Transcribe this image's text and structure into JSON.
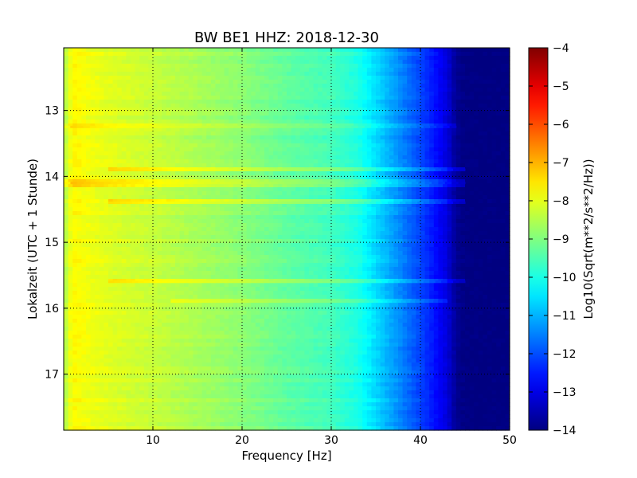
{
  "chart_data": {
    "type": "heatmap",
    "title": "BW BE1 HHZ: 2018-12-30",
    "xlabel": "Frequency [Hz]",
    "ylabel": "Lokalzeit (UTC + 1 Stunde)",
    "xlim": [
      0,
      50
    ],
    "ylim": [
      12.05,
      17.85
    ],
    "y_inverted": true,
    "x_ticks": [
      10,
      20,
      30,
      40,
      50
    ],
    "y_ticks": [
      13,
      14,
      15,
      16,
      17
    ],
    "grid": true,
    "colormap": "jet",
    "colorbar": {
      "label": "Log10(Sqrt(m**2/s**2/Hz))",
      "min": -14,
      "max": -4,
      "ticks": [
        -4,
        -5,
        -6,
        -7,
        -8,
        -9,
        -10,
        -11,
        -12,
        -13,
        -14
      ]
    },
    "spectrum_profile": {
      "frequency_hz": [
        0,
        1,
        3,
        6,
        10,
        15,
        20,
        25,
        30,
        33,
        35,
        37,
        39,
        41,
        43,
        44,
        45,
        50
      ],
      "log10_amplitude": [
        -8.6,
        -7.7,
        -7.9,
        -8.1,
        -8.3,
        -8.6,
        -8.9,
        -9.3,
        -9.6,
        -10.0,
        -10.6,
        -11.2,
        -11.8,
        -12.4,
        -13.1,
        -13.8,
        -14.0,
        -14.0
      ]
    },
    "horizontal_bands": [
      {
        "time_h": 13.25,
        "fmin": 0,
        "fmax": 44,
        "delta": 0.35
      },
      {
        "time_h": 13.9,
        "fmin": 5,
        "fmax": 45,
        "delta": 0.7
      },
      {
        "time_h": 14.1,
        "fmin": 0,
        "fmax": 45,
        "delta": 0.6
      },
      {
        "time_h": 14.4,
        "fmin": 5,
        "fmax": 45,
        "delta": 0.6
      },
      {
        "time_h": 15.6,
        "fmin": 5,
        "fmax": 45,
        "delta": 0.6
      },
      {
        "time_h": 15.9,
        "fmin": 12,
        "fmax": 43,
        "delta": 0.55
      }
    ]
  }
}
